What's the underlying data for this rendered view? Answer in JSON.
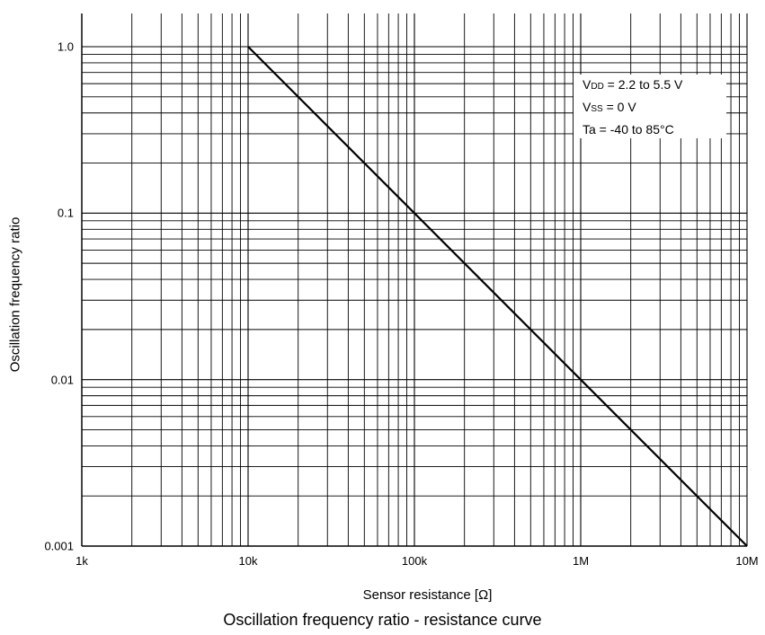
{
  "chart_data": {
    "type": "line",
    "title": "Oscillation frequency ratio - resistance curve",
    "xlabel": "Sensor resistance [Ω]",
    "ylabel": "Oscillation frequency ratio",
    "xscale": "log",
    "yscale": "log",
    "xlim": [
      1000,
      10000000
    ],
    "ylim": [
      0.001,
      1.0
    ],
    "grid": true,
    "x_tick_labels": [
      "1k",
      "10k",
      "100k",
      "1M",
      "10M"
    ],
    "x_ticks": [
      1000,
      10000,
      100000,
      1000000,
      10000000
    ],
    "y_tick_labels": [
      "0.001",
      "0.01",
      "0.1",
      "1.0"
    ],
    "y_ticks": [
      0.001,
      0.01,
      0.1,
      1.0
    ],
    "series": [
      {
        "x": [
          10000,
          100000,
          1000000,
          10000000
        ],
        "y": [
          1.0,
          0.1,
          0.01,
          0.001
        ]
      }
    ],
    "annotation": {
      "lines": [
        {
          "main": "V",
          "sub": "DD",
          "rest": " = 2.2 to 5.5 V"
        },
        {
          "main": "V",
          "sub": "SS",
          "rest": " = 0 V"
        },
        {
          "main": "",
          "sub": "",
          "rest": "Ta = -40 to 85°C"
        }
      ]
    }
  }
}
